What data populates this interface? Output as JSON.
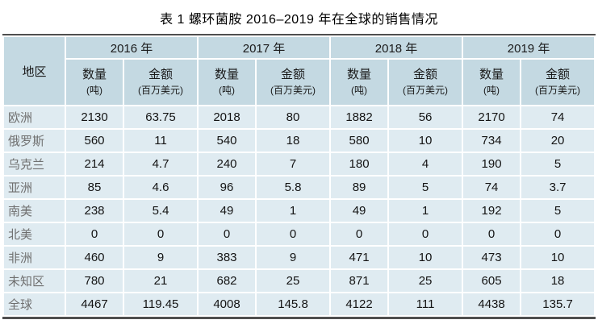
{
  "title": "表 1 螺环菌胺 2016–2019 年在全球的销售情况",
  "table": {
    "region_header": "地区",
    "year_groups": [
      "2016 年",
      "2017 年",
      "2018 年",
      "2019 年"
    ],
    "sub_headers": {
      "qty_label": "数量",
      "qty_unit": "(吨)",
      "amt_label": "金额",
      "amt_unit": "(百万美元)"
    },
    "rows": [
      {
        "region": "欧洲",
        "values": [
          "2130",
          "63.75",
          "2018",
          "80",
          "1882",
          "56",
          "2170",
          "74"
        ]
      },
      {
        "region": "俄罗斯",
        "values": [
          "560",
          "11",
          "540",
          "18",
          "580",
          "10",
          "734",
          "20"
        ]
      },
      {
        "region": "乌克兰",
        "values": [
          "214",
          "4.7",
          "240",
          "7",
          "180",
          "4",
          "190",
          "5"
        ]
      },
      {
        "region": "亚洲",
        "values": [
          "85",
          "4.6",
          "96",
          "5.8",
          "89",
          "5",
          "74",
          "3.7"
        ]
      },
      {
        "region": "南美",
        "values": [
          "238",
          "5.4",
          "49",
          "1",
          "49",
          "1",
          "192",
          "5"
        ]
      },
      {
        "region": "北美",
        "values": [
          "0",
          "0",
          "0",
          "0",
          "0",
          "0",
          "0",
          "0"
        ]
      },
      {
        "region": "非洲",
        "values": [
          "460",
          "9",
          "383",
          "9",
          "471",
          "10",
          "473",
          "10"
        ]
      },
      {
        "region": "未知区",
        "values": [
          "780",
          "21",
          "682",
          "25",
          "871",
          "25",
          "605",
          "18"
        ]
      },
      {
        "region": "全球",
        "values": [
          "4467",
          "119.45",
          "4008",
          "145.8",
          "4122",
          "111",
          "4438",
          "135.7"
        ]
      }
    ]
  },
  "colors": {
    "header_bg": "#c4d9e2",
    "body_bg": "#dfebf1",
    "rule_dark": "#4f4f4f",
    "gap_white": "#ffffff"
  },
  "chart_data": {
    "type": "table",
    "title": "表 1 螺环菌胺 2016–2019 年在全球的销售情况",
    "columns": [
      "地区",
      "2016 数量(吨)",
      "2016 金额(百万美元)",
      "2017 数量(吨)",
      "2017 金额(百万美元)",
      "2018 数量(吨)",
      "2018 金额(百万美元)",
      "2019 数量(吨)",
      "2019 金额(百万美元)"
    ],
    "rows": [
      [
        "欧洲",
        2130,
        63.75,
        2018,
        80,
        1882,
        56,
        2170,
        74
      ],
      [
        "俄罗斯",
        560,
        11,
        540,
        18,
        580,
        10,
        734,
        20
      ],
      [
        "乌克兰",
        214,
        4.7,
        240,
        7,
        180,
        4,
        190,
        5
      ],
      [
        "亚洲",
        85,
        4.6,
        96,
        5.8,
        89,
        5,
        74,
        3.7
      ],
      [
        "南美",
        238,
        5.4,
        49,
        1,
        49,
        1,
        192,
        5
      ],
      [
        "北美",
        0,
        0,
        0,
        0,
        0,
        0,
        0,
        0
      ],
      [
        "非洲",
        460,
        9,
        383,
        9,
        471,
        10,
        473,
        10
      ],
      [
        "未知区",
        780,
        21,
        682,
        25,
        871,
        25,
        605,
        18
      ],
      [
        "全球",
        4467,
        119.45,
        4008,
        145.8,
        4122,
        111,
        4438,
        135.7
      ]
    ]
  }
}
